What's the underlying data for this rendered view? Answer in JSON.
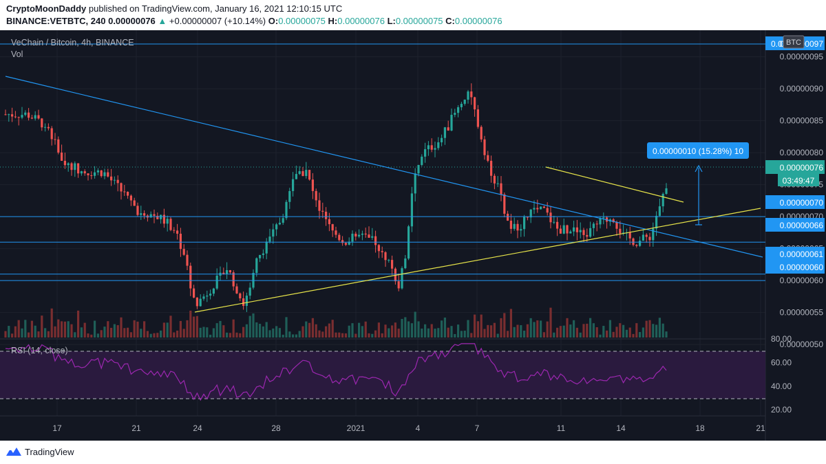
{
  "header": {
    "author": "CryptoMoonDaddy",
    "published": "published on TradingView.com, January 16, 2021 12:10:15 UTC",
    "symbol_interval": "BINANCE:VETBTC, 240",
    "last": "0.00000076",
    "change": "+0.00000007 (+10.14%)",
    "o_label": "O:",
    "o_value": "0.00000075",
    "h_label": "H:",
    "h_value": "0.00000076",
    "l_label": "L:",
    "l_value": "0.00000075",
    "c_label": "C:",
    "c_value": "0.00000076"
  },
  "chart": {
    "legend_title": "VeChain / Bitcoin, 4h, BINANCE",
    "volume_label": "Vol",
    "rsi_label": "RSI (14, close)",
    "currency_badge": "BTC",
    "measure_label": "0.00000010 (15.28%) 10",
    "countdown": "03:49:47",
    "price_ticks": [
      "0.00000095",
      "0.00000090",
      "0.00000085",
      "0.00000080",
      "0.00000075",
      "0.00000070",
      "0.00000065",
      "0.00000060",
      "0.00000055",
      "0.00000050"
    ],
    "price_badges": [
      "0.00000097",
      "0.00000076",
      "0.00000070",
      "0.00000066",
      "0.00000061",
      "0.00000060"
    ],
    "price_badge_partial": "0.0",
    "rsi_ticks": [
      "80.00",
      "60.00",
      "40.00",
      "20.00"
    ],
    "x_ticks": [
      "17",
      "21",
      "24",
      "28",
      "2021",
      "4",
      "7",
      "11",
      "14",
      "18",
      "21"
    ],
    "colors": {
      "background": "#131722",
      "up": "#26a69a",
      "down": "#ef5350",
      "blue_line": "#2196f3",
      "yellow_line": "#e8e54a",
      "rsi_line": "#9c27b0",
      "rsi_band": "#2a1a3e"
    }
  },
  "chart_data": {
    "type": "candlestick",
    "title": "VeChain / Bitcoin, 4h, BINANCE",
    "x_ticks": [
      "17",
      "21",
      "24",
      "28",
      "2021",
      "4",
      "7",
      "11",
      "14",
      "18",
      "21"
    ],
    "ylim": [
      4.7e-07,
      9.8e-07
    ],
    "y_ticks": [
      9.5e-07,
      9e-07,
      8.5e-07,
      8e-07,
      7.5e-07,
      7e-07,
      6.5e-07,
      6e-07,
      5.5e-07,
      5e-07
    ],
    "horizontal_levels": [
      9.7e-07,
      7e-07,
      6.6e-07,
      6.1e-07,
      6e-07
    ],
    "last_close": 7.6e-07,
    "rsi_ticks": [
      80,
      60,
      40,
      20
    ],
    "rsi_bands": [
      70,
      30
    ]
  },
  "footer": {
    "brand": "TradingView"
  }
}
